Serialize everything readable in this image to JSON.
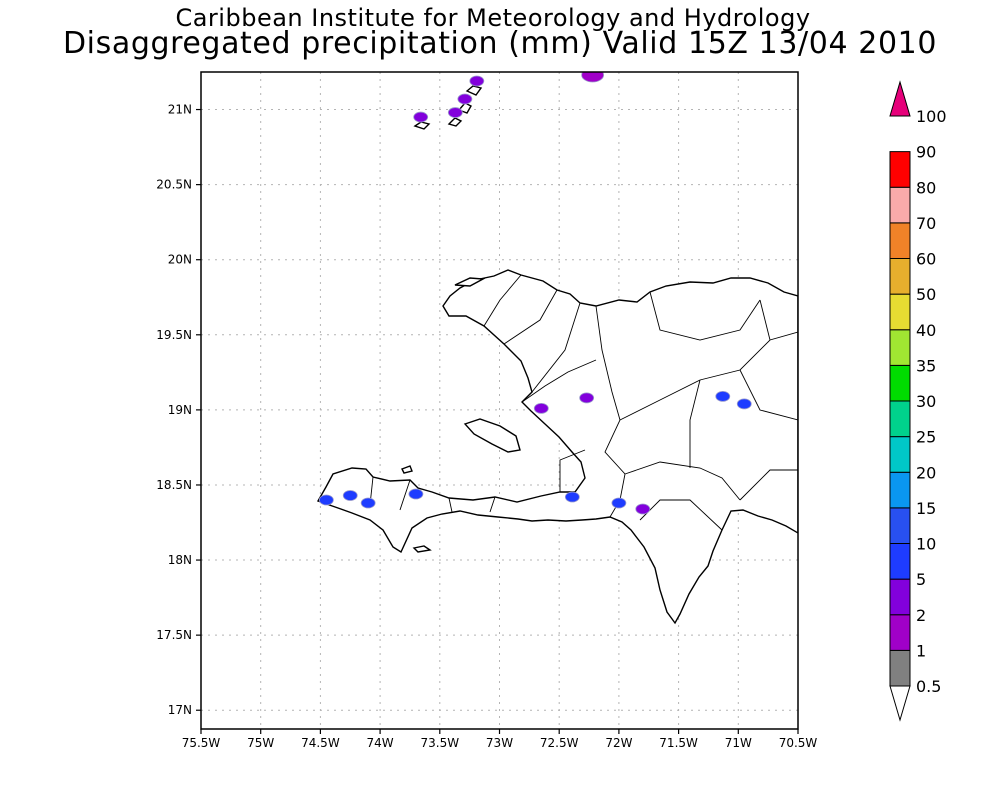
{
  "header": {
    "institute": "Caribbean Institute for Meteorology and Hydrology",
    "product": "Disaggregated precipitation (mm) Valid 15Z 13/04 2010"
  },
  "map": {
    "lon_range": [
      -75.5,
      -70.5
    ],
    "lat_range": [
      16.875,
      21.25
    ],
    "lat_ticks": [
      "17N",
      "17.5N",
      "18N",
      "18.5N",
      "19N",
      "19.5N",
      "20N",
      "20.5N",
      "21N"
    ],
    "lon_ticks": [
      "75.5W",
      "75W",
      "74.5W",
      "74W",
      "73.5W",
      "73W",
      "72.5W",
      "72W",
      "71.5W",
      "71W",
      "70.5W"
    ],
    "grid": "dotted"
  },
  "legend": {
    "labels": [
      "0.5",
      "1",
      "2",
      "5",
      "10",
      "15",
      "20",
      "25",
      "30",
      "35",
      "40",
      "50",
      "60",
      "70",
      "80",
      "90",
      "100"
    ],
    "colors": [
      "#808080",
      "#a000c8",
      "#8200dc",
      "#1e3cff",
      "#2850f0",
      "#0a96f0",
      "#00c8c8",
      "#00d28c",
      "#00dc00",
      "#a0e632",
      "#e6dc32",
      "#e6af2d",
      "#f08228",
      "#faaaaa",
      "#ff0000",
      "#ff3c3c",
      "#e6007a"
    ]
  },
  "precip_areas": [
    {
      "name": "turks-north",
      "lon": -73.19,
      "lat": 21.19,
      "class": "2"
    },
    {
      "name": "turks-mid",
      "lon": -73.29,
      "lat": 21.07,
      "class": "2"
    },
    {
      "name": "turks-small",
      "lon": -73.37,
      "lat": 20.98,
      "class": "2"
    },
    {
      "name": "inagua",
      "lon": -73.66,
      "lat": 20.95,
      "class": "2"
    },
    {
      "name": "caicos-gray",
      "lon": -72.22,
      "lat": 21.23,
      "class": "1"
    },
    {
      "name": "tiburon",
      "lon": -74.45,
      "lat": 18.4,
      "class": "5"
    },
    {
      "name": "les-cayes-west",
      "lon": -74.25,
      "lat": 18.43,
      "class": "5"
    },
    {
      "name": "les-cayes",
      "lon": -74.1,
      "lat": 18.38,
      "class": "5"
    },
    {
      "name": "south-coast",
      "lon": -73.7,
      "lat": 18.44,
      "class": "5"
    },
    {
      "name": "port-au-prince",
      "lon": -72.39,
      "lat": 18.42,
      "class": "5"
    },
    {
      "name": "border-south",
      "lon": -72.0,
      "lat": 18.38,
      "class": "5"
    },
    {
      "name": "barahona",
      "lon": -71.8,
      "lat": 18.34,
      "class": "2"
    },
    {
      "name": "cibao",
      "lon": -71.13,
      "lat": 19.09,
      "class": "5"
    },
    {
      "name": "cibao-east",
      "lon": -70.95,
      "lat": 19.04,
      "class": "5"
    },
    {
      "name": "gonaives",
      "lon": -72.65,
      "lat": 19.01,
      "class": "2"
    },
    {
      "name": "hinche",
      "lon": -72.27,
      "lat": 19.08,
      "class": "2"
    }
  ]
}
